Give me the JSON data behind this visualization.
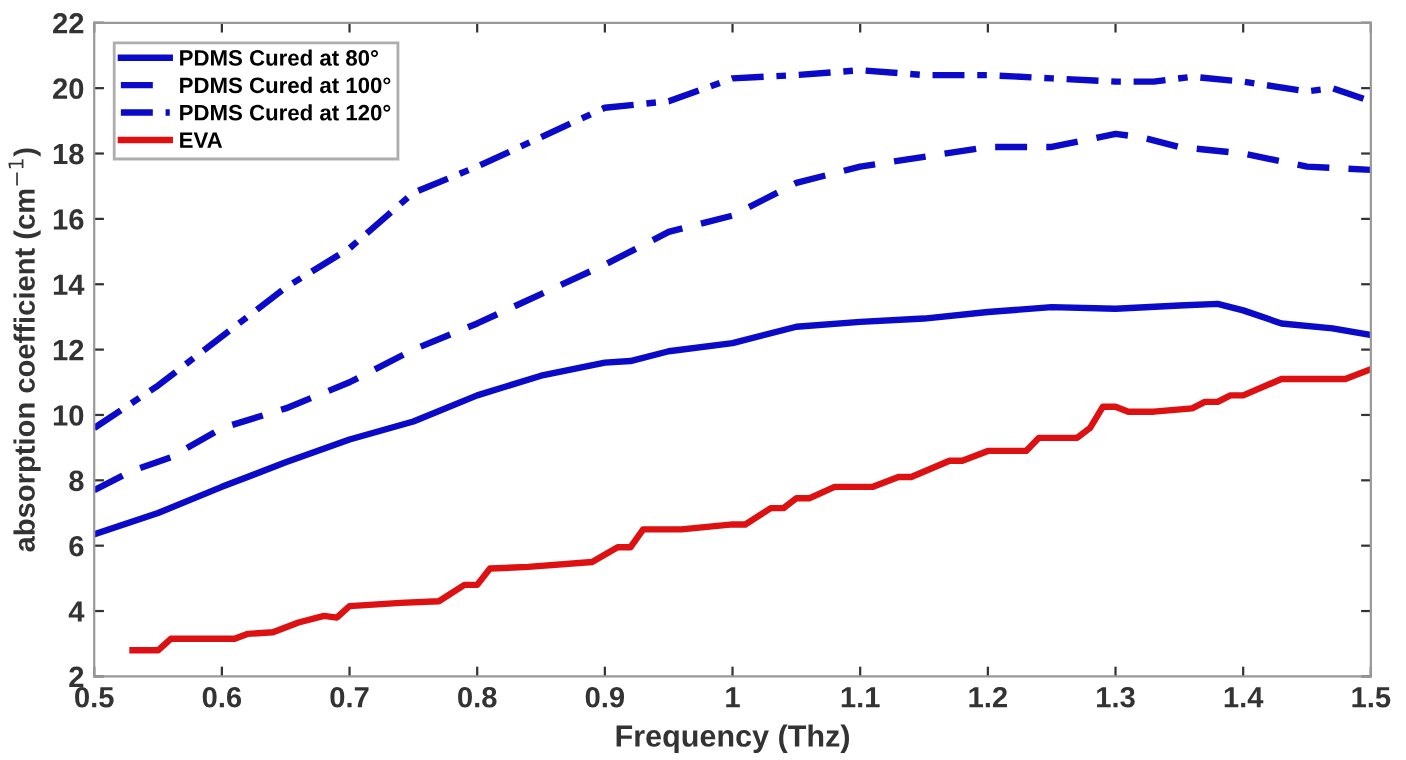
{
  "chart_data": {
    "type": "line",
    "xlabel": "Frequency (Thz)",
    "ylabel": "absorption coefficient (cm$^{−1}$)",
    "xlim": [
      0.5,
      1.5
    ],
    "xticks": [
      0.5,
      0.6,
      0.7,
      0.8,
      0.9,
      1,
      1.1,
      1.2,
      1.3,
      1.4,
      1.5
    ],
    "ylim": [
      2,
      22
    ],
    "yticks": [
      2,
      4,
      6,
      8,
      10,
      12,
      14,
      16,
      18,
      20,
      22
    ],
    "grid": false,
    "legend": "top left",
    "marker": "none",
    "series": [
      {
        "name": "PDMS Cured at 80°",
        "color": "#0a0ac8",
        "line_style": "solid",
        "x": [
          0.5,
          0.55,
          0.6,
          0.65,
          0.7,
          0.75,
          0.8,
          0.85,
          0.9,
          0.92,
          0.95,
          1.0,
          1.05,
          1.1,
          1.15,
          1.2,
          1.25,
          1.3,
          1.35,
          1.38,
          1.4,
          1.43,
          1.47,
          1.5
        ],
        "values": [
          6.35,
          7.0,
          7.8,
          8.55,
          9.25,
          9.8,
          10.6,
          11.2,
          11.6,
          11.65,
          11.95,
          12.2,
          12.7,
          12.85,
          12.95,
          13.15,
          13.3,
          13.25,
          13.35,
          13.4,
          13.2,
          12.8,
          12.65,
          12.45
        ]
      },
      {
        "name": "PDMS Cured at 100°",
        "color": "#0a0ac8",
        "line_style": "dashed",
        "x": [
          0.5,
          0.53,
          0.56,
          0.6,
          0.65,
          0.7,
          0.75,
          0.8,
          0.85,
          0.9,
          0.95,
          1.0,
          1.05,
          1.1,
          1.15,
          1.2,
          1.25,
          1.3,
          1.32,
          1.35,
          1.4,
          1.45,
          1.5
        ],
        "values": [
          7.7,
          8.3,
          8.7,
          9.6,
          10.2,
          11.0,
          12.0,
          12.8,
          13.7,
          14.6,
          15.6,
          16.1,
          17.1,
          17.6,
          17.9,
          18.2,
          18.2,
          18.6,
          18.5,
          18.2,
          18.0,
          17.6,
          17.5
        ]
      },
      {
        "name": "PDMS Cured at 120°",
        "color": "#0a0ac8",
        "line_style": "dashdot",
        "x": [
          0.5,
          0.55,
          0.6,
          0.65,
          0.7,
          0.75,
          0.8,
          0.85,
          0.9,
          0.95,
          1.0,
          1.05,
          1.1,
          1.15,
          1.2,
          1.25,
          1.3,
          1.33,
          1.36,
          1.4,
          1.45,
          1.47,
          1.5
        ],
        "values": [
          9.6,
          10.9,
          12.4,
          13.9,
          15.1,
          16.8,
          17.6,
          18.5,
          19.4,
          19.6,
          20.3,
          20.4,
          20.55,
          20.4,
          20.4,
          20.3,
          20.2,
          20.2,
          20.35,
          20.2,
          19.9,
          20.0,
          19.6
        ]
      },
      {
        "name": "EVA",
        "color": "#dd1111",
        "line_style": "solid",
        "x": [
          0.53,
          0.55,
          0.56,
          0.61,
          0.62,
          0.64,
          0.66,
          0.68,
          0.69,
          0.7,
          0.74,
          0.77,
          0.79,
          0.8,
          0.81,
          0.84,
          0.89,
          0.91,
          0.92,
          0.93,
          0.96,
          1.0,
          1.01,
          1.03,
          1.04,
          1.05,
          1.06,
          1.08,
          1.11,
          1.13,
          1.14,
          1.17,
          1.18,
          1.2,
          1.23,
          1.24,
          1.27,
          1.28,
          1.29,
          1.3,
          1.31,
          1.33,
          1.36,
          1.37,
          1.38,
          1.39,
          1.4,
          1.43,
          1.48,
          1.5
        ],
        "values": [
          2.8,
          2.8,
          3.15,
          3.15,
          3.3,
          3.35,
          3.65,
          3.85,
          3.8,
          4.15,
          4.25,
          4.3,
          4.8,
          4.8,
          5.3,
          5.35,
          5.5,
          5.95,
          5.95,
          6.5,
          6.5,
          6.65,
          6.65,
          7.15,
          7.15,
          7.45,
          7.45,
          7.8,
          7.8,
          8.1,
          8.1,
          8.6,
          8.6,
          8.9,
          8.9,
          9.3,
          9.3,
          9.6,
          10.25,
          10.25,
          10.1,
          10.1,
          10.2,
          10.4,
          10.4,
          10.6,
          10.6,
          11.1,
          11.1,
          11.4
        ]
      }
    ]
  }
}
